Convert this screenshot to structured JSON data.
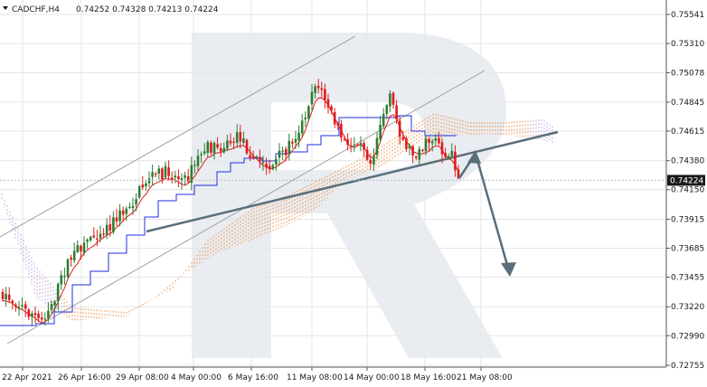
{
  "header": {
    "symbol": "CADCHF,H4",
    "ohlc": "0.74252 0.74328 0.74213 0.74224"
  },
  "colors": {
    "bull": "#2e7d32",
    "bear": "#e01b1b",
    "tenkan": "#e01b1b",
    "kijun": "#1f2fe0",
    "cloud_bull": "#f0a060",
    "cloud_bear": "#c8a8e0",
    "channel": "#a0a0a0",
    "arrow": "#5a6e7a",
    "grid": "#e6e6e6",
    "watermark": "#e9edf2"
  },
  "chart_data": {
    "type": "candlestick",
    "x_ticks": [
      "22 Apr 2021",
      "26 Apr 16:00",
      "29 Apr 08:00",
      "4 May 00:00",
      "6 May 16:00",
      "11 May 08:00",
      "14 May 00:00",
      "18 May 16:00",
      "21 May 08:00"
    ],
    "y_ticks": [
      "0.75541",
      "0.75310",
      "0.75078",
      "0.74845",
      "0.74615",
      "0.74380",
      "0.74150",
      "0.73915",
      "0.73685",
      "0.73455",
      "0.73220",
      "0.72990",
      "0.72755"
    ],
    "ylim": [
      0.72755,
      0.75541
    ],
    "current_price": "0.74224",
    "current_value": 0.74224
  }
}
